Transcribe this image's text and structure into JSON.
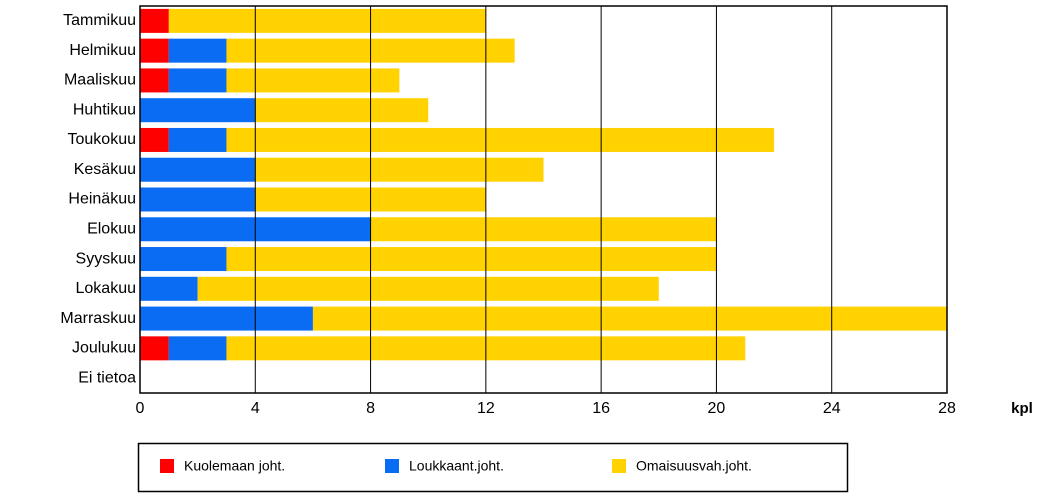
{
  "chart_data": {
    "type": "stacked_barh",
    "categories": [
      "Tammikuu",
      "Helmikuu",
      "Maaliskuu",
      "Huhtikuu",
      "Toukokuu",
      "Kesäkuu",
      "Heinäkuu",
      "Elokuu",
      "Syyskuu",
      "Lokakuu",
      "Marraskuu",
      "Joulukuu",
      "Ei tietoa"
    ],
    "series": [
      {
        "name": "Kuolemaan joht.",
        "color": "#ff0000",
        "values": [
          1,
          1,
          1,
          0,
          1,
          0,
          0,
          0,
          0,
          0,
          0,
          1,
          0
        ]
      },
      {
        "name": "Loukkaant.joht.",
        "color": "#0a6cf2",
        "values": [
          0,
          2,
          2,
          4,
          2,
          4,
          4,
          8,
          3,
          2,
          6,
          2,
          0
        ]
      },
      {
        "name": "Omaisuusvah.joht.",
        "color": "#ffd200",
        "values": [
          11,
          10,
          6,
          6,
          19,
          10,
          8,
          12,
          17,
          16,
          22,
          18,
          0
        ]
      }
    ],
    "xlabel": "kpl",
    "xlim": [
      0,
      28
    ],
    "xticks": [
      0,
      4,
      8,
      12,
      16,
      20,
      24,
      28
    ],
    "grid": true,
    "legend": "bottom"
  }
}
